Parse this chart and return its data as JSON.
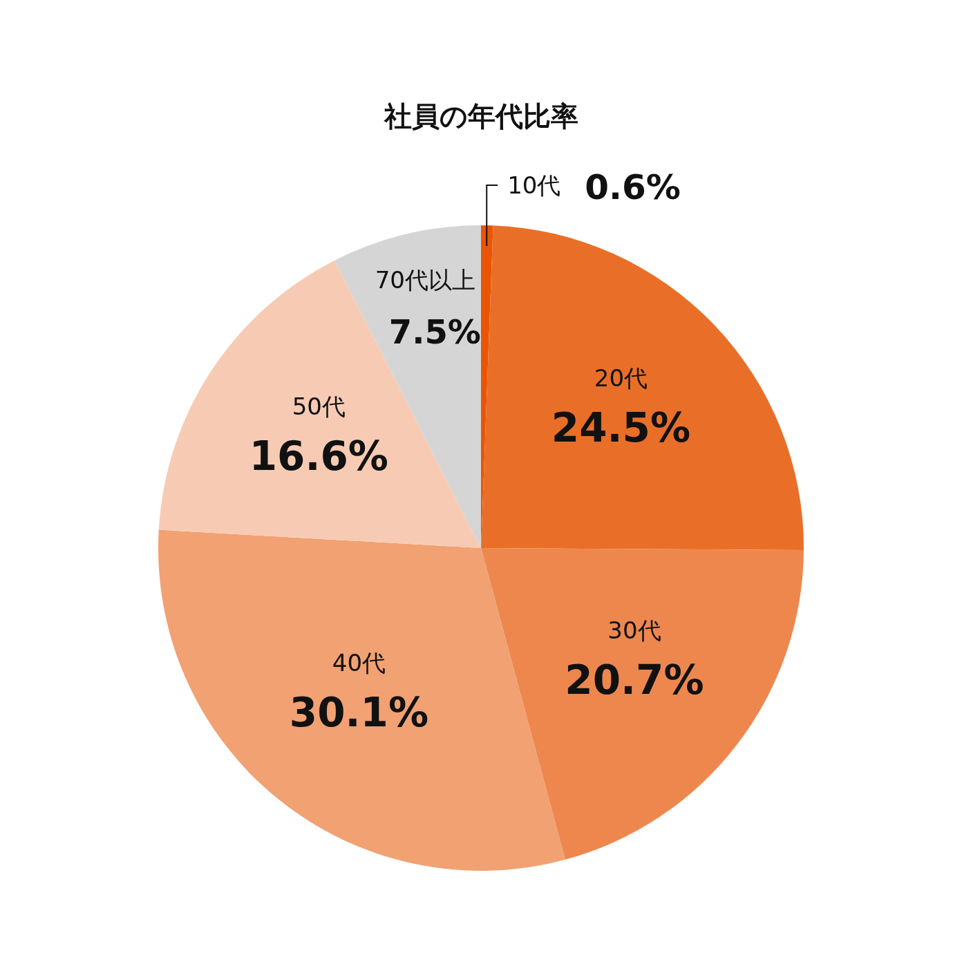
{
  "chart_data": {
    "type": "pie",
    "title": "社員の年代比率",
    "categories": [
      "10代",
      "20代",
      "30代",
      "40代",
      "50代",
      "70代以上"
    ],
    "values": [
      0.6,
      24.5,
      20.7,
      30.1,
      16.6,
      7.5
    ],
    "value_labels": [
      "0.6%",
      "24.5%",
      "20.7%",
      "30.1%",
      "16.6%",
      "7.5%"
    ],
    "colors": [
      "#ea5504",
      "#e96f28",
      "#ee874e",
      "#f1a172",
      "#f7cbb3",
      "#d5d5d5"
    ]
  }
}
